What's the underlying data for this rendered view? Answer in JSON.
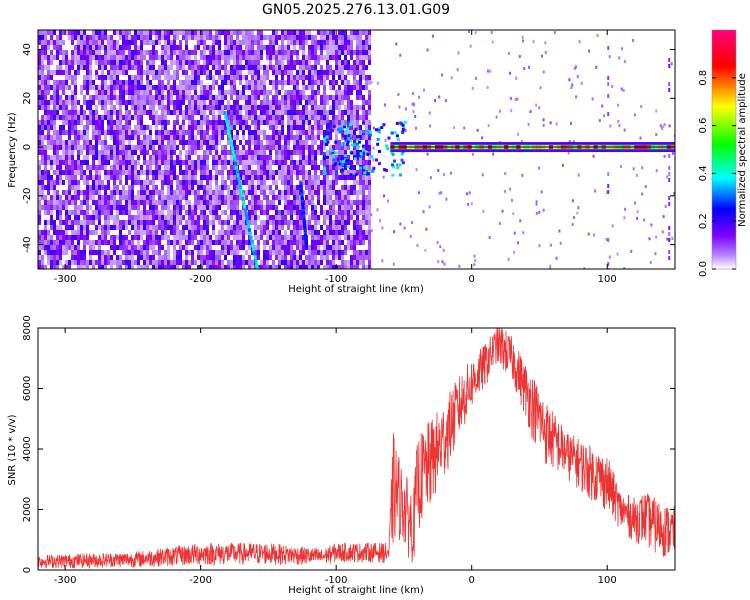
{
  "title": "GN05.2025.276.13.01.G09",
  "chart_data": [
    {
      "type": "heatmap",
      "xlabel": "Height of straight line (km)",
      "ylabel": "Frequency (Hz)",
      "xlim": [
        -320,
        150
      ],
      "ylim": [
        -50,
        48
      ],
      "xticks": [
        -300,
        -200,
        -100,
        0,
        100
      ],
      "yticks": [
        -40,
        -20,
        0,
        20,
        40
      ],
      "colorbar": {
        "label": "Normalized spectral amplitude",
        "range": [
          0.0,
          1.0
        ],
        "ticks": [
          0.0,
          0.2,
          0.4,
          0.6,
          0.8
        ],
        "colors": [
          "#ffffff",
          "#8000ff",
          "#0000ff",
          "#00ffff",
          "#00ff00",
          "#ffff00",
          "#ff0000",
          "#ff0080"
        ]
      },
      "features": {
        "noise_region_x": [
          -320,
          -75
        ],
        "carrier_frequency_hz": 0,
        "carrier_start_x": -60,
        "drift_line_1": {
          "x": [
            -182,
            -158
          ],
          "y": [
            14,
            -50
          ]
        },
        "drift_line_2": {
          "x": [
            -126,
            -122
          ],
          "y": [
            -15,
            -40
          ]
        }
      }
    },
    {
      "type": "line",
      "xlabel": "Height of straight line (km)",
      "ylabel": "SNR (10 * v/v)",
      "xlim": [
        -320,
        150
      ],
      "ylim": [
        0,
        8000
      ],
      "xticks": [
        -300,
        -200,
        -100,
        0,
        100
      ],
      "yticks": [
        0,
        2000,
        4000,
        6000,
        8000
      ],
      "series_color": "#ee3333",
      "envelope": {
        "x": [
          -320,
          -250,
          -200,
          -150,
          -110,
          -100,
          -75,
          -61,
          -58,
          -52,
          -47,
          -43,
          -40,
          -30,
          -20,
          -10,
          0,
          10,
          18,
          22,
          30,
          38,
          45,
          55,
          70,
          85,
          100,
          110,
          120,
          128,
          135,
          142,
          150
        ],
        "lo": [
          50,
          80,
          150,
          170,
          150,
          250,
          250,
          220,
          700,
          1000,
          400,
          200,
          1200,
          2000,
          3000,
          4200,
          5300,
          6000,
          6800,
          6600,
          6200,
          5200,
          4300,
          3400,
          3000,
          2400,
          1900,
          1300,
          900,
          800,
          500,
          400,
          350
        ],
        "hi": [
          500,
          600,
          900,
          900,
          700,
          900,
          900,
          900,
          4600,
          3500,
          3000,
          2600,
          4400,
          5000,
          5600,
          6400,
          7000,
          7500,
          8000,
          8100,
          7700,
          7000,
          6500,
          5600,
          4600,
          4200,
          3800,
          2600,
          2400,
          2600,
          2400,
          2200,
          2100
        ]
      }
    }
  ]
}
